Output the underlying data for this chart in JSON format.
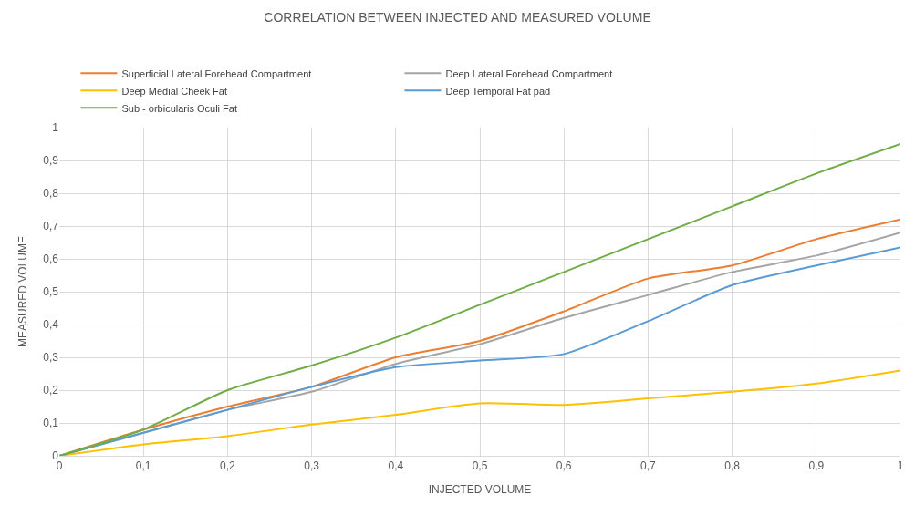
{
  "chart_data": {
    "type": "line",
    "title": "CORRELATION BETWEEN INJECTED AND MEASURED VOLUME",
    "xlabel": "INJECTED VOLUME",
    "ylabel": "MEASURED VOLUME",
    "x": [
      0,
      0.1,
      0.2,
      0.3,
      0.4,
      0.5,
      0.6,
      0.7,
      0.8,
      0.9,
      1
    ],
    "series": [
      {
        "name": "Superficial Lateral Forehead Compartment",
        "color": "#ed7d31",
        "values": [
          0,
          0.08,
          0.15,
          0.21,
          0.3,
          0.35,
          0.44,
          0.54,
          0.58,
          0.66,
          0.72
        ]
      },
      {
        "name": "Deep Lateral Forehead Compartment",
        "color": "#a5a5a5",
        "values": [
          0,
          0.07,
          0.14,
          0.195,
          0.28,
          0.34,
          0.42,
          0.49,
          0.56,
          0.61,
          0.68
        ]
      },
      {
        "name": "Deep Medial Cheek Fat",
        "color": "#ffc000",
        "values": [
          0,
          0.035,
          0.06,
          0.095,
          0.125,
          0.16,
          0.155,
          0.175,
          0.195,
          0.22,
          0.26
        ]
      },
      {
        "name": "Deep Temporal Fat pad",
        "color": "#5b9bd5",
        "values": [
          0,
          0.07,
          0.14,
          0.21,
          0.27,
          0.29,
          0.31,
          0.41,
          0.52,
          0.58,
          0.635
        ]
      },
      {
        "name": "Sub - orbicularis Oculi Fat",
        "color": "#70ad47",
        "values": [
          0,
          0.08,
          0.2,
          0.275,
          0.36,
          0.46,
          0.56,
          0.66,
          0.76,
          0.86,
          0.95
        ]
      }
    ],
    "xlim": [
      0,
      1
    ],
    "ylim": [
      0,
      1
    ],
    "xticks": [
      0,
      {
        "value": 0.1,
        "label": "0,1"
      },
      {
        "value": 0.2,
        "label": "0,2"
      },
      {
        "value": 0.3,
        "label": "0,3"
      },
      {
        "value": 0.4,
        "label": "0,4"
      },
      {
        "value": 0.5,
        "label": "0,5"
      },
      {
        "value": 0.6,
        "label": "0,6"
      },
      {
        "value": 0.7,
        "label": "0,7"
      },
      {
        "value": 0.8,
        "label": "0,8"
      },
      {
        "value": 0.9,
        "label": "0,9"
      },
      1
    ],
    "yticks": [
      0,
      {
        "value": 0.1,
        "label": "0,1"
      },
      {
        "value": 0.2,
        "label": "0,2"
      },
      {
        "value": 0.3,
        "label": "0,3"
      },
      {
        "value": 0.4,
        "label": "0,4"
      },
      {
        "value": 0.5,
        "label": "0,5"
      },
      {
        "value": 0.6,
        "label": "0,6"
      },
      {
        "value": 0.7,
        "label": "0,7"
      },
      {
        "value": 0.8,
        "label": "0,8"
      },
      {
        "value": 0.9,
        "label": "0,9"
      },
      1
    ],
    "grid": true,
    "legend": "top",
    "marker": "none",
    "line_style": "solid"
  }
}
